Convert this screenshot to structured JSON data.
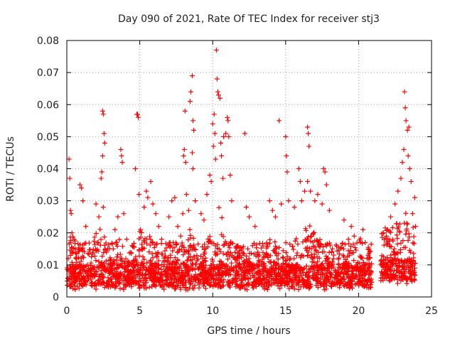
{
  "chart_data": {
    "type": "scatter",
    "title": "Day 090 of 2021, Rate Of TEC Index for receiver stj3",
    "xlabel": "GPS time / hours",
    "ylabel": "ROTI / TECUs",
    "xlim": [
      0,
      25
    ],
    "ylim": [
      0,
      0.08
    ],
    "xticks": [
      0,
      5,
      10,
      15,
      20,
      25
    ],
    "xtick_labels": [
      "0",
      "5",
      "10",
      "15",
      "20",
      "25"
    ],
    "yticks": [
      0,
      0.01,
      0.02,
      0.03,
      0.04,
      0.05,
      0.06,
      0.07,
      0.08
    ],
    "ytick_labels": [
      "0",
      "0.01",
      "0.02",
      "0.03",
      "0.04",
      "0.05",
      "0.06",
      "0.07",
      "0.08"
    ],
    "grid": true,
    "marker": "plus",
    "series": [
      {
        "name": "ROTI",
        "color": "#ff0000",
        "points": [
          [
            0.1,
            0.012
          ],
          [
            0.15,
            0.043
          ],
          [
            0.2,
            0.037
          ],
          [
            0.25,
            0.027
          ],
          [
            0.3,
            0.026
          ],
          [
            0.35,
            0.02
          ],
          [
            0.9,
            0.035
          ],
          [
            1.0,
            0.034
          ],
          [
            1.1,
            0.03
          ],
          [
            1.3,
            0.022
          ],
          [
            2.0,
            0.029
          ],
          [
            2.2,
            0.025
          ],
          [
            2.35,
            0.037
          ],
          [
            2.4,
            0.039
          ],
          [
            2.45,
            0.058
          ],
          [
            2.5,
            0.057
          ],
          [
            2.55,
            0.051
          ],
          [
            2.6,
            0.048
          ],
          [
            2.45,
            0.044
          ],
          [
            2.5,
            0.028
          ],
          [
            3.3,
            0.021
          ],
          [
            3.5,
            0.025
          ],
          [
            3.7,
            0.046
          ],
          [
            3.75,
            0.044
          ],
          [
            3.8,
            0.042
          ],
          [
            3.9,
            0.026
          ],
          [
            4.1,
            0.018
          ],
          [
            4.7,
            0.04
          ],
          [
            4.8,
            0.057
          ],
          [
            4.85,
            0.057
          ],
          [
            4.9,
            0.056
          ],
          [
            4.95,
            0.032
          ],
          [
            5.05,
            0.021
          ],
          [
            5.3,
            0.028
          ],
          [
            5.45,
            0.033
          ],
          [
            5.55,
            0.031
          ],
          [
            5.75,
            0.036
          ],
          [
            5.9,
            0.029
          ],
          [
            6.1,
            0.026
          ],
          [
            6.3,
            0.022
          ],
          [
            6.5,
            0.018
          ],
          [
            7.0,
            0.025
          ],
          [
            7.2,
            0.03
          ],
          [
            7.4,
            0.031
          ],
          [
            7.6,
            0.022
          ],
          [
            7.8,
            0.019
          ],
          [
            7.95,
            0.026
          ],
          [
            8.0,
            0.044
          ],
          [
            8.05,
            0.046
          ],
          [
            8.1,
            0.058
          ],
          [
            8.15,
            0.042
          ],
          [
            8.2,
            0.032
          ],
          [
            8.35,
            0.027
          ],
          [
            8.45,
            0.061
          ],
          [
            8.5,
            0.064
          ],
          [
            8.6,
            0.069
          ],
          [
            8.65,
            0.055
          ],
          [
            8.7,
            0.052
          ],
          [
            8.6,
            0.045
          ],
          [
            8.65,
            0.04
          ],
          [
            8.8,
            0.03
          ],
          [
            9.2,
            0.026
          ],
          [
            9.4,
            0.024
          ],
          [
            9.6,
            0.032
          ],
          [
            9.8,
            0.038
          ],
          [
            9.9,
            0.036
          ],
          [
            10.0,
            0.054
          ],
          [
            10.05,
            0.047
          ],
          [
            10.1,
            0.057
          ],
          [
            10.15,
            0.051
          ],
          [
            10.2,
            0.043
          ],
          [
            10.25,
            0.077
          ],
          [
            10.3,
            0.068
          ],
          [
            10.35,
            0.064
          ],
          [
            10.4,
            0.063
          ],
          [
            10.5,
            0.062
          ],
          [
            10.55,
            0.048
          ],
          [
            10.6,
            0.044
          ],
          [
            10.7,
            0.037
          ],
          [
            10.75,
            0.05
          ],
          [
            10.9,
            0.051
          ],
          [
            11.0,
            0.056
          ],
          [
            11.05,
            0.055
          ],
          [
            11.1,
            0.05
          ],
          [
            11.2,
            0.038
          ],
          [
            11.3,
            0.03
          ],
          [
            12.2,
            0.051
          ],
          [
            12.3,
            0.028
          ],
          [
            12.5,
            0.025
          ],
          [
            12.9,
            0.022
          ],
          [
            13.9,
            0.03
          ],
          [
            14.1,
            0.027
          ],
          [
            14.3,
            0.025
          ],
          [
            14.55,
            0.055
          ],
          [
            14.7,
            0.029
          ],
          [
            15.0,
            0.05
          ],
          [
            15.05,
            0.044
          ],
          [
            15.1,
            0.039
          ],
          [
            15.2,
            0.03
          ],
          [
            15.6,
            0.028
          ],
          [
            15.9,
            0.04
          ],
          [
            16.0,
            0.036
          ],
          [
            16.1,
            0.03
          ],
          [
            16.3,
            0.033
          ],
          [
            16.5,
            0.053
          ],
          [
            16.55,
            0.051
          ],
          [
            16.6,
            0.047
          ],
          [
            16.5,
            0.036
          ],
          [
            16.7,
            0.033
          ],
          [
            17.0,
            0.03
          ],
          [
            17.2,
            0.032
          ],
          [
            17.5,
            0.029
          ],
          [
            17.6,
            0.04
          ],
          [
            17.7,
            0.039
          ],
          [
            17.8,
            0.035
          ],
          [
            18.0,
            0.027
          ],
          [
            19.0,
            0.024
          ],
          [
            19.3,
            0.018
          ],
          [
            19.5,
            0.022
          ],
          [
            19.7,
            0.019
          ],
          [
            20.3,
            0.021
          ],
          [
            20.7,
            0.015
          ],
          [
            21.7,
            0.02
          ],
          [
            22.0,
            0.021
          ],
          [
            22.2,
            0.025
          ],
          [
            22.5,
            0.029
          ],
          [
            22.7,
            0.033
          ],
          [
            22.9,
            0.037
          ],
          [
            23.0,
            0.042
          ],
          [
            23.1,
            0.046
          ],
          [
            23.15,
            0.064
          ],
          [
            23.2,
            0.059
          ],
          [
            23.25,
            0.055
          ],
          [
            23.35,
            0.052
          ],
          [
            23.45,
            0.053
          ],
          [
            23.4,
            0.044
          ],
          [
            23.5,
            0.04
          ],
          [
            23.6,
            0.036
          ],
          [
            23.7,
            0.026
          ],
          [
            23.85,
            0.031
          ],
          [
            23.9,
            0.022
          ]
        ]
      }
    ],
    "dense_band": {
      "description": "dense cluster of points between these values",
      "segments": [
        {
          "x": [
            0.0,
            20.9
          ],
          "y_min": 0.002,
          "y_mid": 0.009,
          "y_max": 0.017
        },
        {
          "x": [
            21.5,
            23.9
          ],
          "y_min": 0.004,
          "y_mid": 0.011,
          "y_max": 0.022
        }
      ],
      "bursts": [
        {
          "x": [
            0.0,
            0.8
          ],
          "peak": 0.02
        },
        {
          "x": [
            1.6,
            2.8
          ],
          "peak": 0.024
        },
        {
          "x": [
            3.3,
            4.1
          ],
          "peak": 0.021
        },
        {
          "x": [
            4.4,
            6.4
          ],
          "peak": 0.026
        },
        {
          "x": [
            7.8,
            8.9
          ],
          "peak": 0.025
        },
        {
          "x": [
            9.4,
            11.4
          ],
          "peak": 0.029
        },
        {
          "x": [
            13.6,
            14.4
          ],
          "peak": 0.022
        },
        {
          "x": [
            15.4,
            17.8
          ],
          "peak": 0.026
        },
        {
          "x": [
            19.6,
            20.6
          ],
          "peak": 0.019
        },
        {
          "x": [
            22.3,
            23.9
          ],
          "peak": 0.028
        }
      ]
    }
  }
}
